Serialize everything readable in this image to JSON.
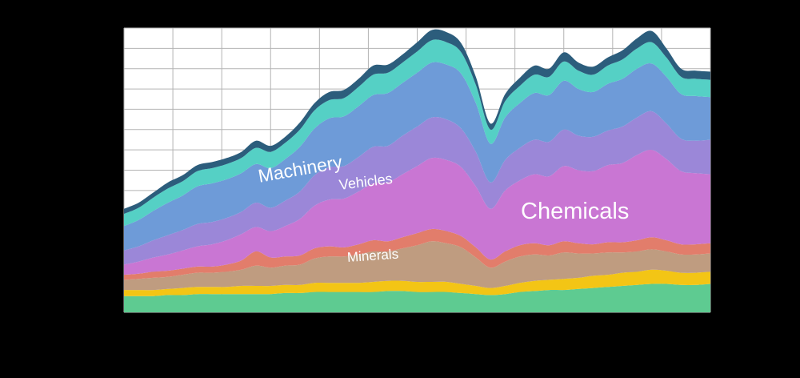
{
  "chart_data": {
    "type": "area",
    "stacked": true,
    "title": "",
    "xlabel": "",
    "ylabel": "",
    "ylim": [
      0,
      14
    ],
    "x_points": 41,
    "grid": {
      "visible": true,
      "horizontal_divisions": 14,
      "vertical_divisions": 12
    },
    "colors": {
      "page_bg": "#000000",
      "plot_bg": "#ffffff",
      "grid_line": "#b3b3b3",
      "label_text": "#ffffff"
    },
    "annotations": {
      "machinery": "Machinery",
      "vehicles": "Vehicles",
      "chemicals": "Chemicals",
      "minerals": "Minerals"
    },
    "series": [
      {
        "name": "green-bottom",
        "label": "",
        "color": "#5ecb91",
        "values": [
          0.8,
          0.8,
          0.8,
          0.85,
          0.85,
          0.9,
          0.9,
          0.9,
          0.9,
          0.9,
          0.9,
          0.95,
          0.95,
          1.0,
          1.0,
          1.0,
          1.0,
          1.0,
          1.05,
          1.05,
          1.0,
          1.0,
          1.0,
          0.95,
          0.9,
          0.85,
          0.9,
          1.0,
          1.05,
          1.1,
          1.1,
          1.15,
          1.2,
          1.25,
          1.3,
          1.35,
          1.4,
          1.4,
          1.35,
          1.35,
          1.4
        ]
      },
      {
        "name": "yellow",
        "label": "",
        "color": "#f3c515",
        "values": [
          0.3,
          0.3,
          0.3,
          0.3,
          0.35,
          0.35,
          0.35,
          0.35,
          0.4,
          0.4,
          0.4,
          0.4,
          0.4,
          0.45,
          0.45,
          0.45,
          0.45,
          0.5,
          0.5,
          0.5,
          0.5,
          0.5,
          0.5,
          0.45,
          0.4,
          0.35,
          0.4,
          0.45,
          0.5,
          0.5,
          0.55,
          0.55,
          0.6,
          0.6,
          0.65,
          0.65,
          0.7,
          0.65,
          0.6,
          0.6,
          0.6
        ]
      },
      {
        "name": "minerals",
        "label": "Minerals",
        "color": "#bf9c80",
        "values": [
          0.5,
          0.55,
          0.6,
          0.6,
          0.65,
          0.7,
          0.7,
          0.75,
          0.8,
          1.0,
          0.9,
          0.95,
          1.0,
          1.2,
          1.3,
          1.3,
          1.4,
          1.5,
          1.45,
          1.6,
          1.8,
          2.0,
          1.9,
          1.8,
          1.4,
          1.0,
          1.2,
          1.3,
          1.3,
          1.2,
          1.3,
          1.2,
          1.1,
          1.1,
          1.0,
          1.0,
          1.0,
          0.95,
          0.9,
          0.9,
          0.9
        ]
      },
      {
        "name": "salmon",
        "label": "",
        "color": "#e27d6b",
        "values": [
          0.25,
          0.25,
          0.3,
          0.3,
          0.3,
          0.3,
          0.3,
          0.35,
          0.45,
          0.7,
          0.5,
          0.45,
          0.45,
          0.5,
          0.5,
          0.45,
          0.5,
          0.55,
          0.5,
          0.55,
          0.6,
          0.6,
          0.6,
          0.55,
          0.5,
          0.4,
          0.5,
          0.55,
          0.55,
          0.5,
          0.55,
          0.5,
          0.45,
          0.5,
          0.5,
          0.55,
          0.6,
          0.55,
          0.5,
          0.5,
          0.5
        ]
      },
      {
        "name": "chemicals",
        "label": "Chemicals",
        "color": "#c976d3",
        "values": [
          0.5,
          0.6,
          0.7,
          0.8,
          0.9,
          1.0,
          1.1,
          1.2,
          1.3,
          1.2,
          1.3,
          1.5,
          1.8,
          2.1,
          2.3,
          2.4,
          2.6,
          2.8,
          2.9,
          3.1,
          3.3,
          3.5,
          3.5,
          3.4,
          3.0,
          2.5,
          3.0,
          3.2,
          3.4,
          3.4,
          3.7,
          3.6,
          3.6,
          3.8,
          3.9,
          4.2,
          4.3,
          4.0,
          3.6,
          3.5,
          3.4
        ]
      },
      {
        "name": "vehicles",
        "label": "Vehicles",
        "color": "#9b87d8",
        "values": [
          0.7,
          0.75,
          0.85,
          0.95,
          1.0,
          1.1,
          1.1,
          1.1,
          1.1,
          1.2,
          1.15,
          1.25,
          1.35,
          1.5,
          1.6,
          1.6,
          1.7,
          1.8,
          1.8,
          1.9,
          1.95,
          2.0,
          2.0,
          1.9,
          1.7,
          1.3,
          1.5,
          1.6,
          1.7,
          1.7,
          1.8,
          1.7,
          1.7,
          1.7,
          1.8,
          1.85,
          1.9,
          1.75,
          1.6,
          1.6,
          1.7
        ]
      },
      {
        "name": "machinery",
        "label": "Machinery",
        "color": "#6e9bd8",
        "values": [
          1.2,
          1.3,
          1.45,
          1.6,
          1.7,
          1.85,
          1.9,
          1.9,
          1.9,
          1.9,
          1.95,
          2.05,
          2.2,
          2.3,
          2.4,
          2.45,
          2.5,
          2.55,
          2.6,
          2.6,
          2.65,
          2.7,
          2.7,
          2.7,
          2.4,
          1.9,
          2.1,
          2.2,
          2.3,
          2.3,
          2.4,
          2.3,
          2.2,
          2.3,
          2.35,
          2.4,
          2.35,
          2.3,
          2.2,
          2.2,
          2.1
        ]
      },
      {
        "name": "aqua",
        "label": "",
        "color": "#55d0c5",
        "values": [
          0.6,
          0.6,
          0.65,
          0.7,
          0.7,
          0.75,
          0.75,
          0.75,
          0.75,
          0.8,
          0.8,
          0.8,
          0.85,
          0.9,
          0.9,
          0.9,
          0.95,
          1.0,
          1.0,
          1.0,
          1.05,
          1.1,
          1.1,
          1.05,
          0.9,
          0.7,
          0.8,
          0.85,
          0.9,
          0.9,
          0.95,
          0.9,
          0.85,
          0.9,
          0.95,
          1.0,
          1.05,
          0.95,
          0.85,
          0.85,
          0.85
        ]
      },
      {
        "name": "dark-teal-top",
        "label": "",
        "color": "#2c5d7c",
        "values": [
          0.25,
          0.25,
          0.25,
          0.3,
          0.3,
          0.3,
          0.3,
          0.3,
          0.3,
          0.35,
          0.3,
          0.3,
          0.35,
          0.35,
          0.4,
          0.4,
          0.4,
          0.45,
          0.4,
          0.4,
          0.45,
          0.5,
          0.5,
          0.45,
          0.4,
          0.3,
          0.35,
          0.4,
          0.45,
          0.4,
          0.45,
          0.4,
          0.4,
          0.4,
          0.45,
          0.5,
          0.55,
          0.45,
          0.4,
          0.4,
          0.4
        ]
      }
    ]
  }
}
